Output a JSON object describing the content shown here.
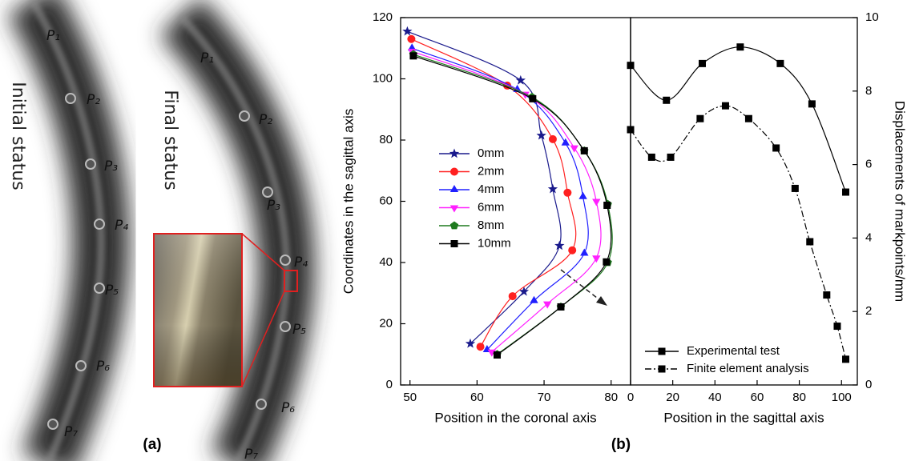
{
  "panel_a": {
    "initial_label": "Initial status",
    "final_label": "Final status",
    "initial_points": [
      "P₁",
      "P₂",
      "P₃",
      "P₄",
      "P₅",
      "P₆",
      "P₇"
    ],
    "final_points": [
      "P₁",
      "P₂",
      "P₃",
      "P₄",
      "P₅",
      "P₆",
      "P₇"
    ]
  },
  "panel_labels": [
    "(a)",
    "(b)"
  ],
  "chart_data": [
    {
      "type": "line",
      "x_label": "Position in the coronal axis",
      "y_label": "Coordinates in the sagittal axis",
      "xlim": [
        48.6,
        82.9
      ],
      "xticks": [
        50,
        60,
        70,
        80
      ],
      "ylim": [
        0,
        120
      ],
      "yticks": [
        0,
        20,
        40,
        60,
        80,
        100,
        120
      ],
      "legend": "center-left",
      "series": [
        {
          "name": "0mm",
          "color": "#1a1a8c",
          "marker": "star",
          "x": [
            49.6,
            66.5,
            69.6,
            71.3,
            72.3,
            67,
            59
          ],
          "values": [
            115.5,
            99.5,
            81.5,
            64,
            45.5,
            30.5,
            13.5
          ]
        },
        {
          "name": "2mm",
          "color": "#ff2020",
          "marker": "circle",
          "x": [
            50.2,
            64.5,
            71.3,
            73.5,
            74.2,
            65.3,
            60.5
          ],
          "values": [
            113,
            97.8,
            80.3,
            62.8,
            44,
            29,
            12.5
          ]
        },
        {
          "name": "4mm",
          "color": "#2020ff",
          "marker": "triangle-up",
          "x": [
            50.3,
            66,
            73.2,
            75.8,
            76,
            68.5,
            61.5
          ],
          "values": [
            110,
            96.5,
            79,
            61.5,
            43,
            27.5,
            11.5
          ]
        },
        {
          "name": "6mm",
          "color": "#ff20ff",
          "marker": "triangle-down",
          "x": [
            50.3,
            67.2,
            74.5,
            77.8,
            77.8,
            70.5,
            62.2
          ],
          "values": [
            109,
            95,
            77.5,
            60,
            41.5,
            26.5,
            10.8
          ]
        },
        {
          "name": "8mm",
          "color": "#1e7a1e",
          "marker": "pentagon",
          "x": [
            50.5,
            68.2,
            76,
            79.5,
            79.5,
            72.5,
            63
          ],
          "values": [
            108,
            94,
            76.5,
            59,
            40,
            25.5,
            10
          ]
        },
        {
          "name": "10mm",
          "color": "#000000",
          "marker": "square",
          "x": [
            50.5,
            68.3,
            76,
            79.4,
            79.3,
            72.5,
            63
          ],
          "values": [
            107.5,
            93.5,
            76.5,
            58.7,
            40.2,
            25.5,
            9.8
          ]
        }
      ]
    },
    {
      "type": "line",
      "x_label": "Position in the sagittal axis",
      "y2_label": "Displacements of markpoints/mm",
      "xlim": [
        0,
        107.5
      ],
      "xticks": [
        0,
        20,
        40,
        60,
        80,
        100
      ],
      "y2lim": [
        0,
        10
      ],
      "y2ticks": [
        0,
        2,
        4,
        6,
        8,
        10
      ],
      "legend": "lower-left",
      "series": [
        {
          "name": "Experimental test",
          "color": "#000000",
          "marker": "square",
          "dash": "solid",
          "axis": "y2",
          "x": [
            0,
            17,
            34,
            52,
            71,
            86,
            102
          ],
          "values": [
            8.7,
            7.75,
            8.75,
            9.2,
            8.75,
            7.65,
            5.25
          ]
        },
        {
          "name": "Finite element analysis",
          "color": "#000000",
          "marker": "square",
          "dash": "dashdot",
          "axis": "y2",
          "x": [
            0,
            10,
            19,
            33,
            45,
            56,
            69,
            78,
            85,
            93,
            98,
            102
          ],
          "values": [
            6.95,
            6.2,
            6.2,
            7.25,
            7.6,
            7.25,
            6.45,
            5.35,
            3.9,
            2.45,
            1.6,
            0.7
          ]
        }
      ]
    }
  ]
}
